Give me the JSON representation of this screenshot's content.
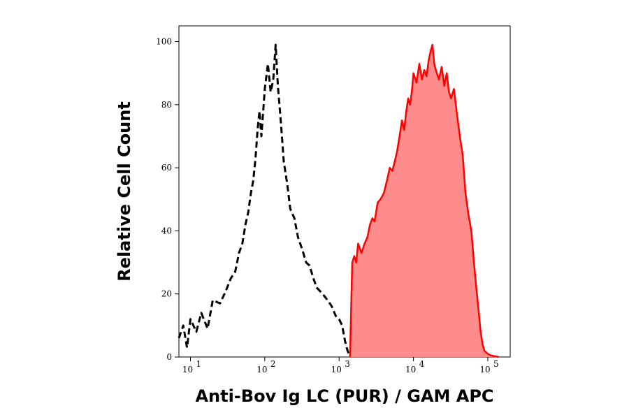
{
  "chart_data": {
    "type": "area",
    "title": "",
    "xlabel": "Anti-Bov Ig LC (PUR) / GAM APC",
    "ylabel": "Relative Cell Count",
    "x_scale": "log",
    "xlim": [
      7,
      200000
    ],
    "ylim": [
      0,
      105
    ],
    "x_tick_values": [
      10,
      100,
      1000,
      10000,
      100000
    ],
    "x_tick_bases": [
      "10",
      "10",
      "10",
      "10",
      "10"
    ],
    "x_tick_exponents": [
      "1",
      "2",
      "3",
      "4",
      "5"
    ],
    "y_tick_values": [
      0,
      20,
      40,
      60,
      80,
      100
    ],
    "y_tick_labels": [
      "0",
      "20",
      "40",
      "60",
      "80",
      "100"
    ],
    "grid": false,
    "legend": "none",
    "series": [
      {
        "style": "dashed",
        "color": "#000000",
        "fill": "none",
        "x": [
          7,
          8,
          9,
          10,
          12,
          14,
          17,
          20,
          25,
          30,
          35,
          40,
          45,
          50,
          55,
          60,
          65,
          70,
          75,
          80,
          85,
          90,
          100,
          110,
          120,
          130,
          140,
          150,
          160,
          170,
          180,
          200,
          220,
          250,
          280,
          320,
          360,
          400,
          450,
          500,
          600,
          700,
          800,
          900,
          1000,
          1100,
          1200,
          1300,
          1400
        ],
        "y": [
          6,
          10,
          3,
          12,
          8,
          14,
          9,
          18,
          17,
          21,
          25,
          27,
          33,
          36,
          42,
          46,
          52,
          56,
          63,
          72,
          78,
          70,
          85,
          93,
          84,
          88,
          99,
          86,
          78,
          70,
          62,
          55,
          47,
          44,
          38,
          34,
          30,
          29,
          25,
          22,
          20,
          18,
          16,
          13,
          12,
          10,
          5,
          2,
          0
        ]
      },
      {
        "style": "solid",
        "color": "#ff0000",
        "fill": "#ff8c8c",
        "x": [
          1400,
          1500,
          1600,
          1700,
          1800,
          2000,
          2200,
          2400,
          2600,
          2800,
          3000,
          3300,
          3600,
          4000,
          4400,
          4800,
          5200,
          5600,
          6000,
          6500,
          7000,
          7500,
          8000,
          8500,
          9000,
          9500,
          10000,
          11000,
          12000,
          13000,
          14000,
          15000,
          16000,
          17000,
          18000,
          19000,
          20000,
          22000,
          24000,
          26000,
          28000,
          30000,
          32000,
          35000,
          38000,
          42000,
          46000,
          50000,
          55000,
          60000,
          65000,
          70000,
          75000,
          80000,
          85000,
          90000,
          100000,
          110000,
          120000,
          140000
        ],
        "y": [
          0,
          30,
          32,
          30,
          36,
          33,
          36,
          38,
          42,
          44,
          43,
          49,
          50,
          52,
          56,
          60,
          59,
          62,
          65,
          70,
          75,
          72,
          78,
          82,
          80,
          84,
          90,
          87,
          93,
          88,
          91,
          89,
          94,
          97,
          99,
          93,
          91,
          88,
          92,
          86,
          90,
          84,
          82,
          85,
          78,
          70,
          64,
          52,
          45,
          40,
          30,
          22,
          15,
          8,
          4,
          2,
          1,
          0.5,
          0.3,
          0
        ]
      }
    ]
  }
}
